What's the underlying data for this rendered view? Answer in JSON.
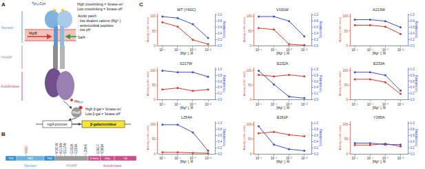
{
  "panel_a": {
    "label": "A",
    "tyr": "Tyr₆₀Cys",
    "crosslink_high": "High crosslinking = 'kinase-on'",
    "crosslink_low": "Low crosslinking = 'kinase-off'",
    "acidic": "Acidic patch",
    "signals": [
      "- low divalent cations (Mg²⁺)",
      "- antimicrobial peptides",
      "- low pH"
    ],
    "mgrb": "MgrB",
    "safa": "SafA",
    "sensor": "Sensor",
    "hamp": "HAMP",
    "autokinase": "Autokinase",
    "his": "His₂₇₇",
    "phop": "PhoP",
    "promoter": "mgtA promoter",
    "reporter": "β-galactosidase",
    "bgal_high": "High β-gal = 'kinase-on'",
    "bgal_low": "Low β-gal = 'kinase-off'"
  },
  "panel_b": {
    "label": "B",
    "segments": [
      {
        "label": "TM1",
        "group": "sensor"
      },
      {
        "label": "PAS",
        "group": "sensor"
      },
      {
        "label": "TM2",
        "group": "sensor"
      },
      {
        "label": null,
        "group": "hamp"
      },
      {
        "label": "S-Helix",
        "group": "autokinase"
      },
      {
        "label": "DHp",
        "group": "autokinase"
      },
      {
        "label": "CA",
        "group": "autokinase"
      }
    ],
    "groups": [
      {
        "key": "sensor",
        "label": "Sensor",
        "color": "#4aa3d8"
      },
      {
        "key": "hamp",
        "label": "HAMP",
        "color": "#9a9a9a"
      },
      {
        "key": "autokinase",
        "label": "Autokinase",
        "color": "#c9508a"
      }
    ],
    "mutations": [
      {
        "label": "Y60C",
        "color": "#c0392b"
      },
      {
        "label": "V191W"
      },
      {
        "label": "A213W"
      },
      {
        "label": "S217W"
      },
      {
        "label": "E232A"
      },
      {
        "label": "E233A"
      },
      {
        "label": "L254A"
      },
      {
        "label": "E261F"
      },
      {
        "label": "Y265A"
      }
    ]
  },
  "panel_c_label": "C",
  "chart_data": [
    {
      "type": "line",
      "title": "WT (Y60C)",
      "x": [
        1e-05,
        0.0001,
        0.001,
        0.01
      ],
      "log": "x",
      "x_label": "[Mg²⁺], M",
      "y_label": "Activity (miller units)",
      "y2_label": "fcrosslinking",
      "xlim": [
        5e-06,
        0.03
      ],
      "xticks": [
        {
          "value": 1e-05,
          "label": "10⁻⁵"
        },
        {
          "value": 0.0001,
          "label": "10⁻⁴"
        },
        {
          "value": 0.001,
          "label": "10⁻³"
        },
        {
          "value": 0.01,
          "label": "10⁻²"
        }
      ],
      "ylim": [
        0,
        110
      ],
      "yticks": [
        0,
        50,
        100
      ],
      "y2lim": [
        0,
        1.05
      ],
      "y2ticks": [
        {
          "value": 0,
          "label": "0.0"
        },
        0.2,
        0.4,
        0.6,
        0.8,
        {
          "value": 1,
          "label": "1.0"
        }
      ],
      "series": [
        {
          "color": "#d23c2a",
          "marker": "circle",
          "line_style": "solid",
          "values": [
            80,
            65,
            20,
            5
          ]
        },
        {
          "color": "#3a4fc4",
          "marker": "circle",
          "line_style": "solid",
          "axis": "y2",
          "values": [
            0.95,
            0.9,
            0.7,
            0.25
          ]
        }
      ]
    },
    {
      "type": "line",
      "title": "V191W",
      "x": [
        1e-05,
        0.0001,
        0.001,
        0.01
      ],
      "log": "x",
      "x_label": "[Mg²⁺], M",
      "y_label": "Activity (miller units)",
      "y2_label": "fcrosslinking",
      "xlim": [
        5e-06,
        0.03
      ],
      "xticks": [
        {
          "value": 1e-05,
          "label": "10⁻⁵"
        },
        {
          "value": 0.0001,
          "label": "10⁻⁴"
        },
        {
          "value": 0.001,
          "label": "10⁻³"
        },
        {
          "value": 0.01,
          "label": "10⁻²"
        }
      ],
      "ylim": [
        0,
        110
      ],
      "yticks": [
        0,
        50,
        100
      ],
      "y2lim": [
        0,
        1.05
      ],
      "y2ticks": [
        {
          "value": 0,
          "label": "0.0"
        },
        0.2,
        0.4,
        0.6,
        0.8,
        {
          "value": 1,
          "label": "1.0"
        }
      ],
      "series": [
        {
          "color": "#d23c2a",
          "marker": "circle",
          "line_style": "solid",
          "values": [
            60,
            55,
            5,
            2
          ]
        },
        {
          "color": "#3a4fc4",
          "marker": "circle",
          "line_style": "solid",
          "axis": "y2",
          "values": [
            0.95,
            0.95,
            0.8,
            0.3
          ]
        }
      ]
    },
    {
      "type": "line",
      "title": "A213W",
      "x": [
        1e-05,
        0.0001,
        0.001,
        0.01
      ],
      "log": "x",
      "x_label": "[Mg²⁺], M",
      "y_label": "Activity (miller units)",
      "y2_label": "fcrosslinking",
      "xlim": [
        5e-06,
        0.03
      ],
      "xticks": [
        {
          "value": 1e-05,
          "label": "10⁻⁵"
        },
        {
          "value": 0.0001,
          "label": "10⁻⁴"
        },
        {
          "value": 0.001,
          "label": "10⁻³"
        },
        {
          "value": 0.01,
          "label": "10⁻²"
        }
      ],
      "ylim": [
        0,
        110
      ],
      "yticks": [
        0,
        50,
        100
      ],
      "y2lim": [
        0,
        1.05
      ],
      "y2ticks": [
        {
          "value": 0,
          "label": "0.0"
        },
        0.2,
        0.4,
        0.6,
        0.8,
        {
          "value": 1,
          "label": "1.0"
        }
      ],
      "series": [
        {
          "color": "#d23c2a",
          "marker": "circle",
          "line_style": "solid",
          "values": [
            70,
            70,
            65,
            40
          ]
        },
        {
          "color": "#3a4fc4",
          "marker": "circle",
          "line_style": "solid",
          "axis": "y2",
          "values": [
            0.85,
            0.85,
            0.8,
            0.6
          ]
        }
      ]
    },
    {
      "type": "line",
      "title": "S217W",
      "x": [
        1e-05,
        0.0001,
        0.001,
        0.01
      ],
      "log": "x",
      "x_label": "[Mg²⁺], M",
      "y_label": "Activity (miller units)",
      "y2_label": "fcrosslinking",
      "xlim": [
        5e-06,
        0.03
      ],
      "xticks": [
        {
          "value": 1e-05,
          "label": "10⁻⁵"
        },
        {
          "value": 0.0001,
          "label": "10⁻⁴"
        },
        {
          "value": 0.001,
          "label": "10⁻³"
        },
        {
          "value": 0.01,
          "label": "10⁻²"
        }
      ],
      "ylim": [
        0,
        110
      ],
      "yticks": [
        0,
        50,
        100
      ],
      "y2lim": [
        0,
        1.05
      ],
      "y2ticks": [
        {
          "value": 0,
          "label": "0.0"
        },
        0.2,
        0.4,
        0.6,
        0.8,
        {
          "value": 1,
          "label": "1.0"
        }
      ],
      "series": [
        {
          "color": "#d23c2a",
          "marker": "circle",
          "line_style": "solid",
          "values": [
            35,
            40,
            30,
            35
          ]
        },
        {
          "color": "#3a4fc4",
          "marker": "circle",
          "line_style": "solid",
          "axis": "y2",
          "values": [
            0.95,
            0.9,
            0.9,
            0.75
          ]
        }
      ]
    },
    {
      "type": "line",
      "title": "E232A",
      "x": [
        1e-05,
        0.0001,
        0.001,
        0.01
      ],
      "log": "x",
      "x_label": "[Mg²⁺], M",
      "y_label": "Activity (miller units)",
      "y2_label": "fcrosslinking",
      "xlim": [
        5e-06,
        0.03
      ],
      "xticks": [
        {
          "value": 1e-05,
          "label": "10⁻⁵"
        },
        {
          "value": 0.0001,
          "label": "10⁻⁴"
        },
        {
          "value": 0.001,
          "label": "10⁻³"
        },
        {
          "value": 0.01,
          "label": "10⁻²"
        }
      ],
      "ylim": [
        0,
        110
      ],
      "yticks": [
        0,
        50,
        100
      ],
      "y2lim": [
        0,
        1.05
      ],
      "y2ticks": [
        {
          "value": 0,
          "label": "0.0"
        },
        0.2,
        0.4,
        0.6,
        0.8,
        {
          "value": 1,
          "label": "1.0"
        }
      ],
      "series": [
        {
          "color": "#d23c2a",
          "marker": "circle",
          "line_style": "solid",
          "values": [
            85,
            80,
            85,
            80
          ]
        },
        {
          "color": "#3a4fc4",
          "marker": "circle",
          "line_style": "solid",
          "axis": "y2",
          "values": [
            0.95,
            0.5,
            0.1,
            0.05
          ]
        }
      ]
    },
    {
      "type": "line",
      "title": "E233A",
      "x": [
        1e-05,
        0.0001,
        0.001,
        0.01
      ],
      "log": "x",
      "x_label": "[Mg²⁺], M",
      "y_label": "Activity (miller units)",
      "y2_label": "fcrosslinking",
      "xlim": [
        5e-06,
        0.03
      ],
      "xticks": [
        {
          "value": 1e-05,
          "label": "10⁻⁵"
        },
        {
          "value": 0.0001,
          "label": "10⁻⁴"
        },
        {
          "value": 0.001,
          "label": "10⁻³"
        },
        {
          "value": 0.01,
          "label": "10⁻²"
        }
      ],
      "ylim": [
        0,
        110
      ],
      "yticks": [
        0,
        50,
        100
      ],
      "y2lim": [
        0,
        1.05
      ],
      "y2ticks": [
        {
          "value": 0,
          "label": "0.0"
        },
        0.2,
        0.4,
        0.6,
        0.8,
        {
          "value": 1,
          "label": "1.0"
        }
      ],
      "series": [
        {
          "color": "#d23c2a",
          "marker": "circle",
          "line_style": "solid",
          "values": [
            70,
            70,
            60,
            20
          ]
        },
        {
          "color": "#3a4fc4",
          "marker": "circle",
          "line_style": "solid",
          "axis": "y2",
          "values": [
            0.9,
            0.9,
            0.8,
            0.3
          ]
        }
      ]
    },
    {
      "type": "line",
      "title": "L254A",
      "x": [
        1e-05,
        0.0001,
        0.001,
        0.01
      ],
      "log": "x",
      "x_label": "[Mg²⁺], M",
      "y_label": "Activity (miller units)",
      "y2_label": "fcrosslinking",
      "xlim": [
        5e-06,
        0.03
      ],
      "xticks": [
        {
          "value": 1e-05,
          "label": "10⁻⁵"
        },
        {
          "value": 0.0001,
          "label": "10⁻⁴"
        },
        {
          "value": 0.001,
          "label": "10⁻³"
        },
        {
          "value": 0.01,
          "label": "10⁻²"
        }
      ],
      "ylim": [
        0,
        110
      ],
      "yticks": [
        0,
        50,
        100
      ],
      "y2lim": [
        0,
        1.05
      ],
      "y2ticks": [
        {
          "value": 0,
          "label": "0.0"
        },
        0.2,
        0.4,
        0.6,
        0.8,
        {
          "value": 1,
          "label": "1.0"
        }
      ],
      "series": [
        {
          "color": "#d23c2a",
          "marker": "circle",
          "line_style": "solid",
          "values": [
            5,
            5,
            3,
            2
          ]
        },
        {
          "color": "#3a4fc4",
          "marker": "circle",
          "line_style": "solid",
          "axis": "y2",
          "values": [
            0.95,
            0.95,
            0.7,
            0.1
          ]
        }
      ]
    },
    {
      "type": "line",
      "title": "E261F",
      "x": [
        1e-05,
        0.0001,
        0.001,
        0.01
      ],
      "log": "x",
      "x_label": "[Mg²⁺], M",
      "y_label": "Activity (miller units)",
      "y2_label": "fcrosslinking",
      "xlim": [
        5e-06,
        0.03
      ],
      "xticks": [
        {
          "value": 1e-05,
          "label": "10⁻⁵"
        },
        {
          "value": 0.0001,
          "label": "10⁻⁴"
        },
        {
          "value": 0.001,
          "label": "10⁻³"
        },
        {
          "value": 0.01,
          "label": "10⁻²"
        }
      ],
      "ylim": [
        0,
        110
      ],
      "yticks": [
        0,
        50,
        100
      ],
      "y2lim": [
        0,
        1.05
      ],
      "y2ticks": [
        {
          "value": 0,
          "label": "0.0"
        },
        0.2,
        0.4,
        0.6,
        0.8,
        {
          "value": 1,
          "label": "1.0"
        }
      ],
      "series": [
        {
          "color": "#d23c2a",
          "marker": "circle",
          "line_style": "solid",
          "values": [
            70,
            75,
            65,
            60
          ]
        },
        {
          "color": "#3a4fc4",
          "marker": "circle",
          "line_style": "solid",
          "axis": "y2",
          "values": [
            0.9,
            0.3,
            0.15,
            0.1
          ]
        }
      ]
    },
    {
      "type": "line",
      "title": "Y265A",
      "x": [
        1e-05,
        0.0001,
        0.001,
        0.01
      ],
      "log": "x",
      "x_label": "[Mg²⁺], M",
      "y_label": "Activity (miller units)",
      "y2_label": "fcrosslinking",
      "xlim": [
        5e-06,
        0.03
      ],
      "xticks": [
        {
          "value": 1e-05,
          "label": "10⁻⁵"
        },
        {
          "value": 0.0001,
          "label": "10⁻⁴"
        },
        {
          "value": 0.001,
          "label": "10⁻³"
        },
        {
          "value": 0.01,
          "label": "10⁻²"
        }
      ],
      "ylim": [
        0,
        110
      ],
      "yticks": [
        0,
        50,
        100
      ],
      "y2lim": [
        0,
        1.05
      ],
      "y2ticks": [
        {
          "value": 0,
          "label": "0.0"
        },
        0.2,
        0.4,
        0.6,
        0.8,
        {
          "value": 1,
          "label": "1.0"
        }
      ],
      "series": [
        {
          "color": "#d23c2a",
          "marker": "circle",
          "line_style": "solid",
          "values": [
            30,
            30,
            35,
            25
          ]
        },
        {
          "color": "#3a4fc4",
          "marker": "circle",
          "line_style": "solid",
          "axis": "y2",
          "values": [
            0.35,
            0.35,
            0.3,
            0.3
          ]
        }
      ]
    }
  ]
}
